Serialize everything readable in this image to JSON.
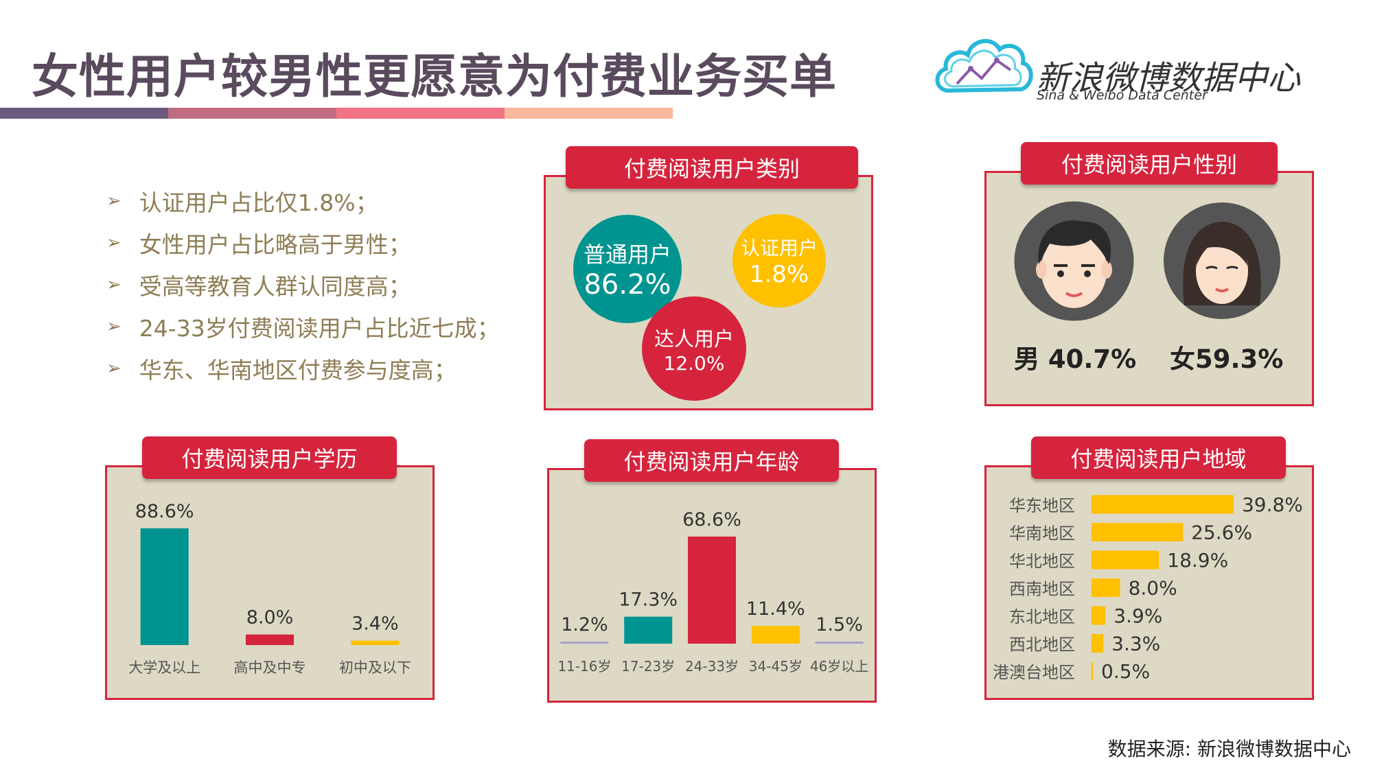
{
  "title": "女性用户较男性更愿意为付费业务买单",
  "logo": {
    "name_cn": "新浪微博数据中心",
    "name_en": "Sina & Weibo Data Center"
  },
  "bullets": [
    "认证用户占比仅1.8%；",
    "女性用户占比略高于男性；",
    "受高等教育人群认同度高；",
    "24-33岁付费阅读用户占比近七成；",
    "华东、华南地区付费参与度高；"
  ],
  "colors": {
    "accent_red": "#d6243d",
    "teal": "#009490",
    "yellow": "#ffc000",
    "panel_bg": "#ddd9c4",
    "text_gold": "#8e7d55",
    "lilac": "#a99fca"
  },
  "strip_colors": [
    "#6b5a7e",
    "#c06d84",
    "#f27383",
    "#f9b79c"
  ],
  "category": {
    "tab": "付费阅读用户类别",
    "bubbles": [
      {
        "label": "普通用户",
        "value": "86.2%",
        "color": "#009490"
      },
      {
        "label": "认证用户",
        "value": "1.8%",
        "color": "#ffc000"
      },
      {
        "label": "达人用户",
        "value": "12.0%",
        "color": "#d6243d"
      }
    ]
  },
  "gender": {
    "tab": "付费阅读用户性别",
    "male": {
      "label": "男",
      "value": "40.7%",
      "icon": "male-avatar-icon"
    },
    "female": {
      "label": "女",
      "value": "59.3%",
      "icon": "female-avatar-icon"
    }
  },
  "chart_data": [
    {
      "type": "bar",
      "title": "付费阅读用户学历",
      "categories": [
        "大学及以上",
        "高中及中专",
        "初中及以下"
      ],
      "values": [
        88.6,
        8.0,
        3.4
      ],
      "labels": [
        "88.6%",
        "8.0%",
        "3.4%"
      ],
      "colors": [
        "#009490",
        "#d6243d",
        "#ffc000"
      ],
      "ylim": [
        0,
        100
      ]
    },
    {
      "type": "bar",
      "title": "付费阅读用户年龄",
      "categories": [
        "11-16岁",
        "17-23岁",
        "24-33岁",
        "34-45岁",
        "46岁以上"
      ],
      "values": [
        1.2,
        17.3,
        68.6,
        11.4,
        1.5
      ],
      "labels": [
        "1.2%",
        "17.3%",
        "68.6%",
        "11.4%",
        "1.5%"
      ],
      "colors": [
        "#a99fca",
        "#009490",
        "#d6243d",
        "#ffc000",
        "#a99fca"
      ],
      "ylim": [
        0,
        80
      ]
    },
    {
      "type": "bar",
      "orientation": "horizontal",
      "title": "付费阅读用户地域",
      "categories": [
        "华东地区",
        "华南地区",
        "华北地区",
        "西南地区",
        "东北地区",
        "西北地区",
        "港澳台地区"
      ],
      "values": [
        39.8,
        25.6,
        18.9,
        8.0,
        3.9,
        3.3,
        0.5
      ],
      "labels": [
        "39.8%",
        "25.6%",
        "18.9%",
        "8.0%",
        "3.9%",
        "3.3%",
        "0.5%"
      ],
      "color": "#ffc000",
      "xlim": [
        0,
        40
      ]
    }
  ],
  "source": "数据来源: 新浪微博数据中心"
}
